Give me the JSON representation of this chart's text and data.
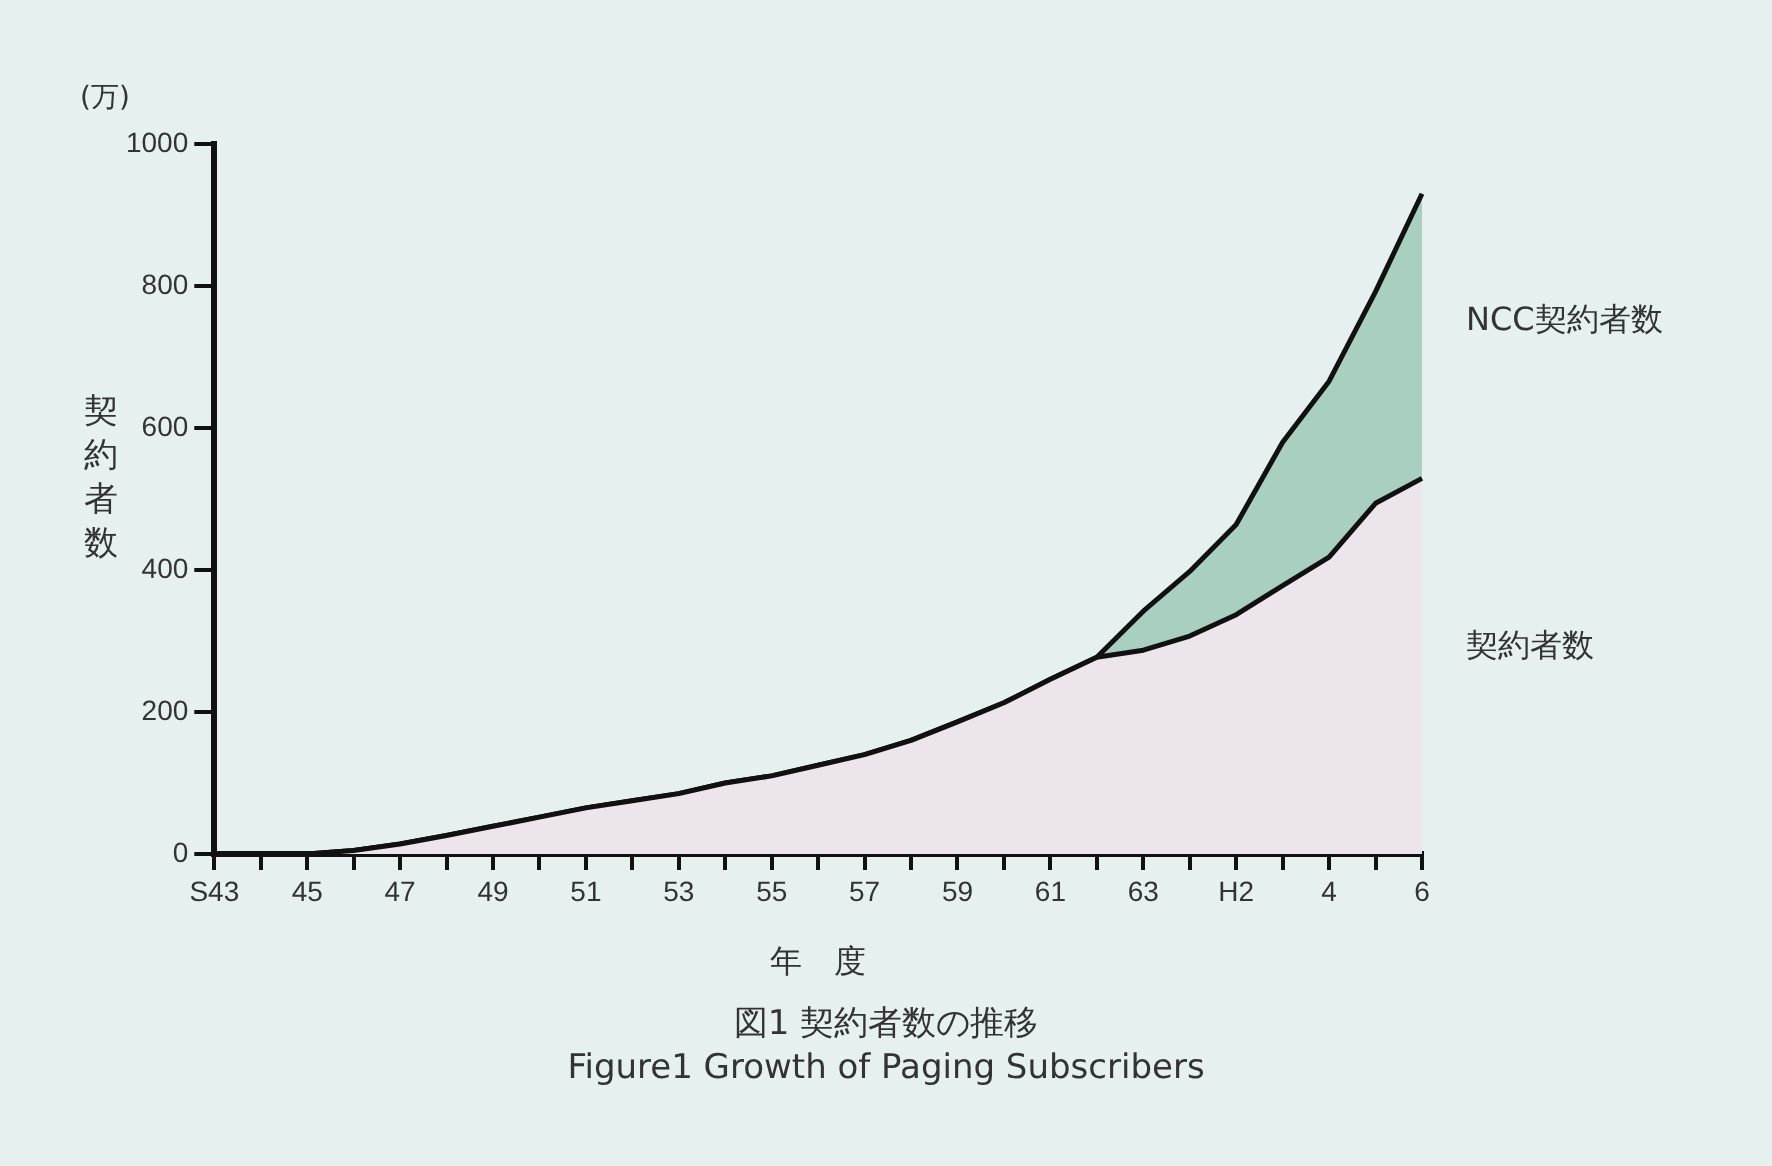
{
  "chart_data": {
    "type": "area",
    "stacked": true,
    "title": "図1 契約者数の推移",
    "subtitle": "Figure1 Growth of Paging Subscribers",
    "xlabel": "年　度",
    "ylabel": "契約者数",
    "annotations": [
      "(万)"
    ],
    "categories": [
      "S43",
      null,
      "45",
      null,
      "47",
      null,
      "49",
      null,
      "51",
      null,
      "53",
      null,
      "55",
      null,
      "57",
      null,
      "59",
      null,
      "61",
      null,
      "63",
      null,
      "H2",
      null,
      "4",
      null,
      "6"
    ],
    "series": [
      {
        "name": "契約者数",
        "color": "#ece6ec",
        "values": [
          0,
          0,
          0,
          5,
          14,
          26,
          39,
          52,
          65,
          75,
          85,
          100,
          110,
          125,
          140,
          160,
          186,
          213,
          246,
          277,
          287,
          307,
          337,
          378,
          418,
          494,
          529
        ]
      },
      {
        "name": "NCC契約者数",
        "color": "#a8cfbf",
        "values": [
          0,
          0,
          0,
          0,
          0,
          0,
          0,
          0,
          0,
          0,
          0,
          0,
          0,
          0,
          0,
          0,
          0,
          0,
          0,
          0,
          55,
          91,
          127,
          202,
          248,
          298,
          401
        ]
      }
    ],
    "ylim": [
      0,
      1000
    ],
    "yticks": [
      0,
      200,
      400,
      600,
      800,
      1000
    ],
    "grid": false,
    "legend": false,
    "marker": "none"
  }
}
